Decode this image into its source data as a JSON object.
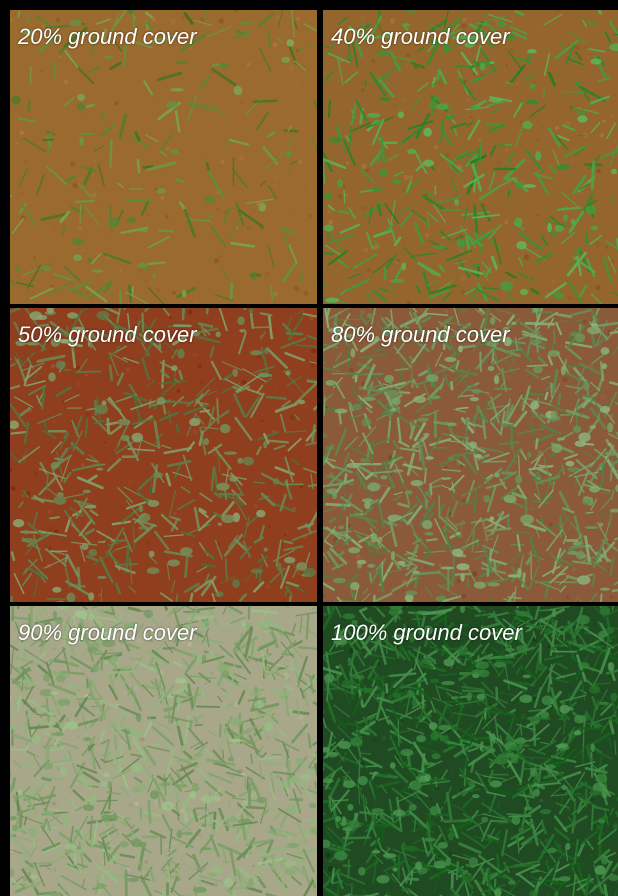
{
  "panels": [
    {
      "label": "20% ground cover",
      "cover_percent": 20,
      "soil_color": "#9a6a2e",
      "grass_color": "#5c8a3a"
    },
    {
      "label": "40% ground cover",
      "cover_percent": 40,
      "soil_color": "#94662e",
      "grass_color": "#3f9a3c"
    },
    {
      "label": "50% ground cover",
      "cover_percent": 50,
      "soil_color": "#8f3e1e",
      "grass_color": "#6b8a55"
    },
    {
      "label": "80% ground cover",
      "cover_percent": 80,
      "soil_color": "#8a5a3a",
      "grass_color": "#6f9a60"
    },
    {
      "label": "90% ground cover",
      "cover_percent": 90,
      "soil_color": "#a8a78a",
      "grass_color": "#7fa36a"
    },
    {
      "label": "100% ground cover",
      "cover_percent": 100,
      "soil_color": "#1f4a22",
      "grass_color": "#2f7a34"
    }
  ]
}
